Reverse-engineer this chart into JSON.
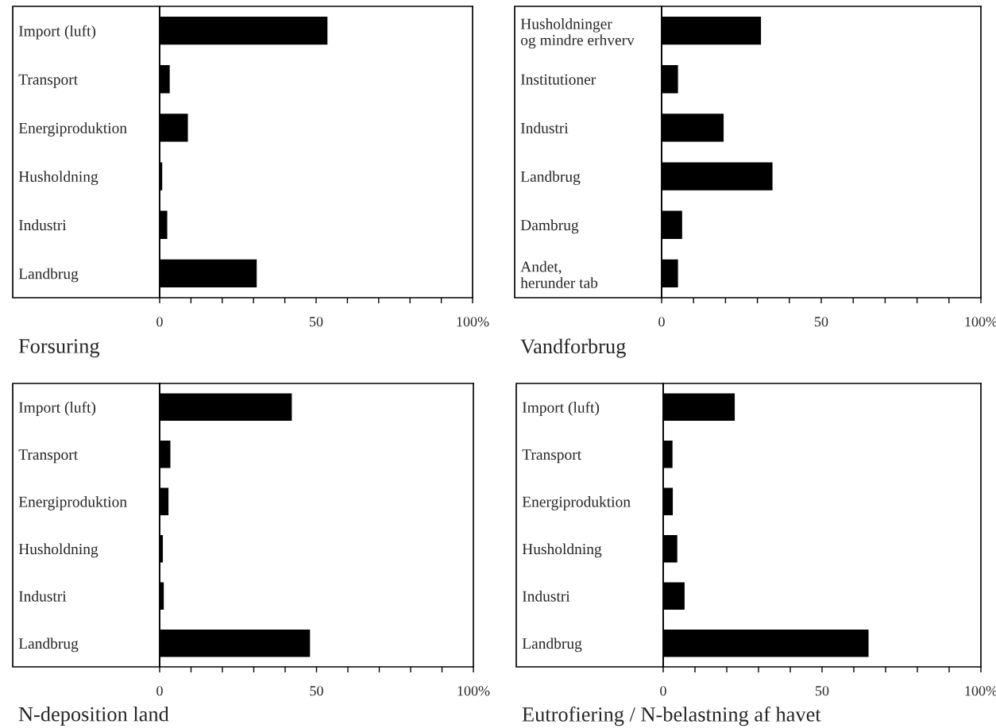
{
  "chart_data": [
    {
      "type": "bar",
      "orientation": "horizontal",
      "title": "Forsuring",
      "categories": [
        "Import (luft)",
        "Transport",
        "Energiproduktion",
        "Husholdning",
        "Industri",
        "Landbrug"
      ],
      "values": [
        53.8,
        3.4,
        9.2,
        1.0,
        2.6,
        31.2
      ],
      "color": "#000000",
      "xlim": [
        0,
        100
      ],
      "xticks": [
        0,
        {
          "value": 10,
          "label": null
        },
        {
          "value": 20,
          "label": null
        },
        {
          "value": 30,
          "label": null
        },
        {
          "value": 40,
          "label": null
        },
        50,
        {
          "value": 60,
          "label": null
        },
        {
          "value": 70,
          "label": null
        },
        {
          "value": 80,
          "label": null
        },
        {
          "value": 90,
          "label": null
        },
        {
          "value": 100,
          "label": "100%"
        }
      ],
      "grid": false,
      "legend": false
    },
    {
      "type": "bar",
      "orientation": "horizontal",
      "title": "Vandforbrug",
      "categories": [
        "Husholdninger\nog mindre erhverv",
        "Institutioner",
        "Industri",
        "Landbrug",
        "Dambrug",
        "Andet,\nherunder tab"
      ],
      "values": [
        31.3,
        5.3,
        19.6,
        34.9,
        6.6,
        5.3
      ],
      "color": "#000000",
      "xlim": [
        0,
        100
      ],
      "xticks": [
        0,
        {
          "value": 10,
          "label": null
        },
        {
          "value": 20,
          "label": null
        },
        {
          "value": 30,
          "label": null
        },
        {
          "value": 40,
          "label": null
        },
        50,
        {
          "value": 60,
          "label": null
        },
        {
          "value": 70,
          "label": null
        },
        {
          "value": 80,
          "label": null
        },
        {
          "value": 90,
          "label": null
        },
        {
          "value": 100,
          "label": "100%"
        }
      ],
      "grid": false,
      "legend": false
    },
    {
      "type": "bar",
      "orientation": "horizontal",
      "title": "N-deposition land",
      "categories": [
        "Import (luft)",
        "Transport",
        "Energiproduktion",
        "Husholdning",
        "Industri",
        "Landbrug"
      ],
      "values": [
        42.3,
        3.6,
        3.0,
        1.2,
        1.5,
        48.1
      ],
      "color": "#000000",
      "xlim": [
        0,
        100
      ],
      "xticks": [
        0,
        {
          "value": 10,
          "label": null
        },
        {
          "value": 20,
          "label": null
        },
        {
          "value": 30,
          "label": null
        },
        {
          "value": 40,
          "label": null
        },
        50,
        {
          "value": 60,
          "label": null
        },
        {
          "value": 70,
          "label": null
        },
        {
          "value": 80,
          "label": null
        },
        {
          "value": 90,
          "label": null
        },
        {
          "value": 100,
          "label": "100%"
        }
      ],
      "grid": false,
      "legend": false
    },
    {
      "type": "bar",
      "orientation": "horizontal",
      "title": "Eutrofiering / N-belastning af havet",
      "categories": [
        "Import (luft)",
        "Transport",
        "Energiproduktion",
        "Husholdning",
        "Industri",
        "Landbrug"
      ],
      "values": [
        22.7,
        3.1,
        3.2,
        4.6,
        6.9,
        64.8
      ],
      "color": "#000000",
      "xlim": [
        0,
        100
      ],
      "xticks": [
        0,
        {
          "value": 10,
          "label": null
        },
        {
          "value": 20,
          "label": null
        },
        {
          "value": 30,
          "label": null
        },
        {
          "value": 40,
          "label": null
        },
        50,
        {
          "value": 60,
          "label": null
        },
        {
          "value": 70,
          "label": null
        },
        {
          "value": 80,
          "label": null
        },
        {
          "value": 90,
          "label": null
        },
        {
          "value": 100,
          "label": "100%"
        }
      ],
      "grid": false,
      "legend": false
    }
  ]
}
